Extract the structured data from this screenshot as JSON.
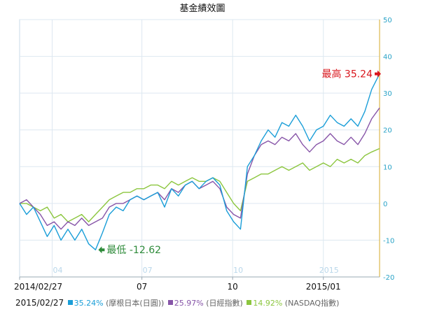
{
  "chart_data": {
    "type": "line",
    "title": "基金績效圖",
    "y_axis_position": "right",
    "ylim": [
      -20,
      50
    ],
    "yticks": [
      -20,
      -10,
      0,
      10,
      20,
      30,
      40,
      50
    ],
    "xlim": [
      "2014-02-27",
      "2015-02-27"
    ],
    "x_bottom_ticks": [
      {
        "date": "2014-02-27",
        "label": "2014/02/27"
      },
      {
        "date": "2014-07-01",
        "label": "07"
      },
      {
        "date": "2014-10-01",
        "label": "10"
      },
      {
        "date": "2015-01-01",
        "label": "2015/01"
      }
    ],
    "x_inner_ticks": [
      {
        "date": "2014-04-01",
        "label": "04"
      },
      {
        "date": "2014-07-01",
        "label": "07"
      },
      {
        "date": "2014-10-01",
        "label": "10"
      },
      {
        "date": "2015-01-01",
        "label": "2015"
      }
    ],
    "grid": true,
    "legend_placement": "bottom",
    "legend_date": "2015/02/27",
    "series": [
      {
        "name": "(摩根日本(日圓))",
        "value_label": "35.24%",
        "color": "#1a9ed8",
        "x": [
          "2014-02-27",
          "2014-03-06",
          "2014-03-13",
          "2014-03-20",
          "2014-03-27",
          "2014-04-03",
          "2014-04-10",
          "2014-04-17",
          "2014-04-24",
          "2014-05-01",
          "2014-05-08",
          "2014-05-15",
          "2014-05-22",
          "2014-05-29",
          "2014-06-05",
          "2014-06-12",
          "2014-06-19",
          "2014-06-26",
          "2014-07-03",
          "2014-07-10",
          "2014-07-17",
          "2014-07-24",
          "2014-07-31",
          "2014-08-07",
          "2014-08-14",
          "2014-08-21",
          "2014-08-28",
          "2014-09-04",
          "2014-09-11",
          "2014-09-18",
          "2014-09-25",
          "2014-10-02",
          "2014-10-09",
          "2014-10-16",
          "2014-10-23",
          "2014-10-30",
          "2014-11-06",
          "2014-11-13",
          "2014-11-20",
          "2014-11-27",
          "2014-12-04",
          "2014-12-11",
          "2014-12-18",
          "2014-12-25",
          "2015-01-01",
          "2015-01-08",
          "2015-01-15",
          "2015-01-22",
          "2015-01-29",
          "2015-02-05",
          "2015-02-12",
          "2015-02-19",
          "2015-02-27"
        ],
        "values": [
          0,
          -3,
          -1,
          -5,
          -9,
          -6,
          -10,
          -7,
          -10,
          -7,
          -11,
          -12.62,
          -8,
          -3,
          -1,
          -2,
          1,
          2,
          1,
          2,
          3,
          -1,
          4,
          2,
          5,
          6,
          4,
          6,
          7,
          5,
          -2,
          -5,
          -7,
          10,
          13,
          17,
          20,
          18,
          22,
          21,
          24,
          21,
          17,
          20,
          21,
          24,
          22,
          21,
          23,
          21,
          25,
          31,
          35.24
        ]
      },
      {
        "name": "(日經指數)",
        "value_label": "25.97%",
        "color": "#8755a8",
        "x": [
          "2014-02-27",
          "2014-03-06",
          "2014-03-13",
          "2014-03-20",
          "2014-03-27",
          "2014-04-03",
          "2014-04-10",
          "2014-04-17",
          "2014-04-24",
          "2014-05-01",
          "2014-05-08",
          "2014-05-15",
          "2014-05-22",
          "2014-05-29",
          "2014-06-05",
          "2014-06-12",
          "2014-06-19",
          "2014-06-26",
          "2014-07-03",
          "2014-07-10",
          "2014-07-17",
          "2014-07-24",
          "2014-07-31",
          "2014-08-07",
          "2014-08-14",
          "2014-08-21",
          "2014-08-28",
          "2014-09-04",
          "2014-09-11",
          "2014-09-18",
          "2014-09-25",
          "2014-10-02",
          "2014-10-09",
          "2014-10-16",
          "2014-10-23",
          "2014-10-30",
          "2014-11-06",
          "2014-11-13",
          "2014-11-20",
          "2014-11-27",
          "2014-12-04",
          "2014-12-11",
          "2014-12-18",
          "2014-12-25",
          "2015-01-01",
          "2015-01-08",
          "2015-01-15",
          "2015-01-22",
          "2015-01-29",
          "2015-02-05",
          "2015-02-12",
          "2015-02-19",
          "2015-02-27"
        ],
        "values": [
          0,
          1,
          -1,
          -3,
          -6,
          -5,
          -7,
          -5,
          -6,
          -4,
          -6,
          -5,
          -4,
          -1,
          0,
          0,
          1,
          2,
          1,
          2,
          3,
          1,
          4,
          3,
          5,
          6,
          4,
          5,
          6,
          4,
          -1,
          -3,
          -4,
          8,
          13,
          16,
          17,
          16,
          18,
          17,
          19,
          16,
          14,
          16,
          17,
          19,
          17,
          16,
          18,
          16,
          19,
          23,
          25.97
        ]
      },
      {
        "name": "(NASDAQ指數)",
        "value_label": "14.92%",
        "color": "#8cc63f",
        "x": [
          "2014-02-27",
          "2014-03-06",
          "2014-03-13",
          "2014-03-20",
          "2014-03-27",
          "2014-04-03",
          "2014-04-10",
          "2014-04-17",
          "2014-04-24",
          "2014-05-01",
          "2014-05-08",
          "2014-05-15",
          "2014-05-22",
          "2014-05-29",
          "2014-06-05",
          "2014-06-12",
          "2014-06-19",
          "2014-06-26",
          "2014-07-03",
          "2014-07-10",
          "2014-07-17",
          "2014-07-24",
          "2014-07-31",
          "2014-08-07",
          "2014-08-14",
          "2014-08-21",
          "2014-08-28",
          "2014-09-04",
          "2014-09-11",
          "2014-09-18",
          "2014-09-25",
          "2014-10-02",
          "2014-10-09",
          "2014-10-16",
          "2014-10-23",
          "2014-10-30",
          "2014-11-06",
          "2014-11-13",
          "2014-11-20",
          "2014-11-27",
          "2014-12-04",
          "2014-12-11",
          "2014-12-18",
          "2014-12-25",
          "2015-01-01",
          "2015-01-08",
          "2015-01-15",
          "2015-01-22",
          "2015-01-29",
          "2015-02-05",
          "2015-02-12",
          "2015-02-19",
          "2015-02-27"
        ],
        "values": [
          0,
          0,
          -1,
          -2,
          -1,
          -4,
          -3,
          -5,
          -4,
          -3,
          -5,
          -3,
          -1,
          1,
          2,
          3,
          3,
          4,
          4,
          5,
          5,
          4,
          6,
          5,
          6,
          7,
          6,
          6,
          7,
          6,
          3,
          0,
          -2,
          6,
          7,
          8,
          8,
          9,
          10,
          9,
          10,
          11,
          9,
          10,
          11,
          10,
          12,
          11,
          12,
          11,
          13,
          14,
          14.92
        ]
      }
    ],
    "annotations": [
      {
        "name": "max",
        "label": "最高",
        "value_text": "35.24",
        "date": "2015-02-27",
        "value": 35.24,
        "color": "#d9141b"
      },
      {
        "name": "min",
        "label": "最低",
        "value_text": "-12.62",
        "date": "2014-05-15",
        "value": -12.62,
        "color": "#2e8b3a"
      }
    ]
  }
}
